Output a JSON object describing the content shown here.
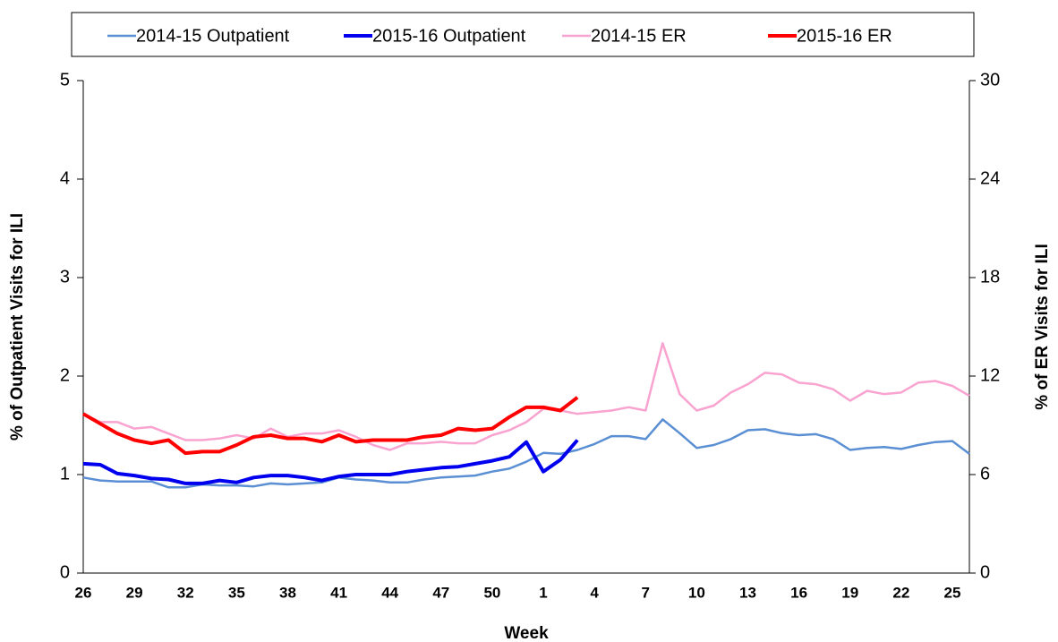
{
  "chart_data": {
    "type": "line",
    "x_label": "Week",
    "y_label": "% of Outpatient Visits for ILI",
    "y2_label": "% of ER Visits for ILI",
    "y_label_color": "#0000ee",
    "y2_label_color": "#ff0000",
    "legend": "top",
    "categories": [
      "26",
      null,
      null,
      "29",
      null,
      null,
      "32",
      null,
      null,
      "35",
      null,
      null,
      "38",
      null,
      null,
      "41",
      null,
      null,
      "44",
      null,
      null,
      "47",
      null,
      null,
      "50",
      null,
      null,
      "1",
      null,
      null,
      "4",
      null,
      null,
      "7",
      null,
      null,
      "10",
      null,
      null,
      "13",
      null,
      null,
      "16",
      null,
      null,
      "19",
      null,
      null,
      "22",
      null,
      null,
      "25",
      null
    ],
    "ylim": [
      0,
      5
    ],
    "yticks": [
      0,
      1,
      2,
      3,
      4,
      5
    ],
    "y2lim": [
      0,
      30
    ],
    "y2ticks": [
      0,
      6,
      12,
      18,
      24,
      30
    ],
    "series": [
      {
        "name": "2014-15 Outpatient",
        "color": "#5b8fd3",
        "width": 2.5,
        "values": [
          0.97,
          0.94,
          0.93,
          0.93,
          0.93,
          0.87,
          0.87,
          0.9,
          0.89,
          0.89,
          0.88,
          0.91,
          0.9,
          0.91,
          0.92,
          0.97,
          0.95,
          0.94,
          0.92,
          0.92,
          0.95,
          0.97,
          0.98,
          0.99,
          1.03,
          1.06,
          1.13,
          1.22,
          1.21,
          1.25,
          1.31,
          1.39,
          1.39,
          1.36,
          1.56,
          1.42,
          1.27,
          1.3,
          1.36,
          1.45,
          1.46,
          1.42,
          1.4,
          1.41,
          1.36,
          1.25,
          1.27,
          1.28,
          1.26,
          1.3,
          1.33,
          1.34,
          1.21
        ]
      },
      {
        "name": "2015-16 Outpatient",
        "color": "#0000ee",
        "width": 4,
        "values": [
          1.11,
          1.1,
          1.01,
          0.99,
          0.96,
          0.95,
          0.91,
          0.91,
          0.94,
          0.92,
          0.97,
          0.99,
          0.99,
          0.97,
          0.94,
          0.98,
          1.0,
          1.0,
          1.0,
          1.03,
          1.05,
          1.07,
          1.08,
          1.11,
          1.14,
          1.18,
          1.33,
          1.03,
          1.15,
          1.35,
          null,
          null,
          null,
          null,
          null,
          null,
          null,
          null,
          null,
          null,
          null,
          null,
          null,
          null,
          null,
          null,
          null,
          null,
          null,
          null,
          null,
          null,
          null
        ]
      },
      {
        "name": "2014-15 ER",
        "color": "#f9a3d0",
        "width": 2.5,
        "axis": "y2",
        "values": [
          9.7,
          9.2,
          9.2,
          8.8,
          8.9,
          8.5,
          8.1,
          8.1,
          8.2,
          8.4,
          8.2,
          8.8,
          8.3,
          8.5,
          8.5,
          8.7,
          8.3,
          7.8,
          7.5,
          7.9,
          7.9,
          8.0,
          7.9,
          7.9,
          8.4,
          8.7,
          9.2,
          10.0,
          9.9,
          9.7,
          9.8,
          9.9,
          10.1,
          9.9,
          14.0,
          10.9,
          9.9,
          10.2,
          11.0,
          11.5,
          12.2,
          12.1,
          11.6,
          11.5,
          11.2,
          10.5,
          11.1,
          10.9,
          11.0,
          11.6,
          11.7,
          11.4,
          10.8
        ]
      },
      {
        "name": "2015-16 ER",
        "color": "#ff0000",
        "width": 4,
        "axis": "y2",
        "values": [
          9.7,
          9.1,
          8.5,
          8.1,
          7.9,
          8.1,
          7.3,
          7.4,
          7.4,
          7.8,
          8.3,
          8.4,
          8.2,
          8.2,
          8.0,
          8.4,
          8.0,
          8.1,
          8.1,
          8.1,
          8.3,
          8.4,
          8.8,
          8.7,
          8.8,
          9.5,
          10.1,
          10.1,
          9.9,
          10.7,
          null,
          null,
          null,
          null,
          null,
          null,
          null,
          null,
          null,
          null,
          null,
          null,
          null,
          null,
          null,
          null,
          null,
          null,
          null,
          null,
          null,
          null,
          null
        ]
      }
    ]
  }
}
